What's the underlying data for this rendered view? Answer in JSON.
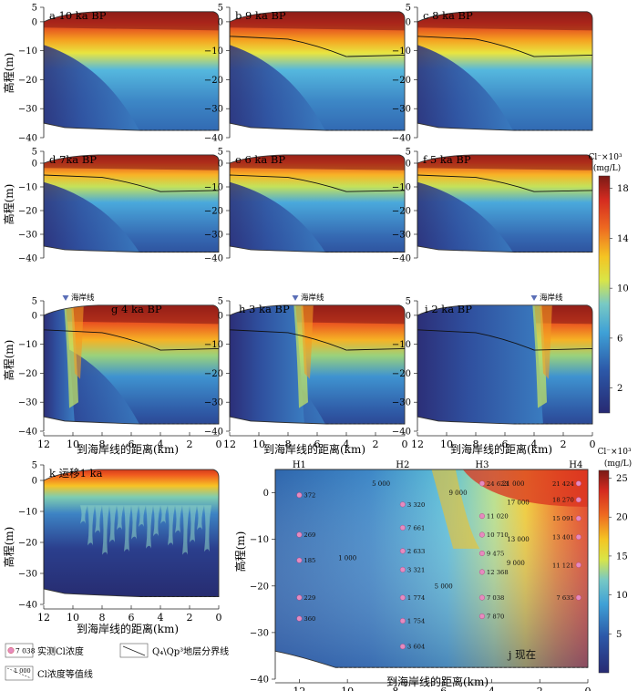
{
  "labels": {
    "ylabel": "高程(m)",
    "xlabel": "到海岸线的距离(km)",
    "coast": "海岸线",
    "colorbar_unit_top": "Cl⁻×10³",
    "colorbar_unit_bottom": "(mg/L)",
    "legend_measured": "实测Cl浓度",
    "legend_boundary": "Q₄\\Qp³地层分界线",
    "legend_contour": "Cl浓度等值线",
    "legend_sample_value": "7 038",
    "legend_contour_value": "1 000"
  },
  "chart_data": [
    {
      "type": "heatmap",
      "panel": "a",
      "title": "a  10 ka BP",
      "xlim": [
        12,
        0
      ],
      "ylim": [
        -40,
        5
      ],
      "xticks": [
        12,
        10,
        8,
        6,
        4,
        2,
        0
      ],
      "yticks": [
        5,
        0,
        -10,
        -20,
        -30,
        -40
      ]
    },
    {
      "type": "heatmap",
      "panel": "b",
      "title": "b  9 ka BP",
      "xlim": [
        12,
        0
      ],
      "ylim": [
        -40,
        5
      ]
    },
    {
      "type": "heatmap",
      "panel": "c",
      "title": "c  8 ka BP",
      "xlim": [
        12,
        0
      ],
      "ylim": [
        -40,
        5
      ]
    },
    {
      "type": "heatmap",
      "panel": "d",
      "title": "d  7ka BP",
      "xlim": [
        12,
        0
      ],
      "ylim": [
        -40,
        5
      ]
    },
    {
      "type": "heatmap",
      "panel": "e",
      "title": "e  6 ka BP",
      "xlim": [
        12,
        0
      ],
      "ylim": [
        -40,
        5
      ]
    },
    {
      "type": "heatmap",
      "panel": "f",
      "title": "f  5 ka BP",
      "xlim": [
        12,
        0
      ],
      "ylim": [
        -40,
        5
      ]
    },
    {
      "type": "heatmap",
      "panel": "g",
      "title": "g  4 ka BP",
      "xlim": [
        12,
        0
      ],
      "ylim": [
        -40,
        5
      ],
      "coastline_km": 10.5
    },
    {
      "type": "heatmap",
      "panel": "h",
      "title": "h  3 ka BP",
      "xlim": [
        12,
        0
      ],
      "ylim": [
        -40,
        5
      ],
      "coastline_km": 7.5
    },
    {
      "type": "heatmap",
      "panel": "i",
      "title": "i  2 ka BP",
      "xlim": [
        12,
        0
      ],
      "ylim": [
        -40,
        5
      ],
      "coastline_km": 4.0
    },
    {
      "type": "heatmap",
      "panel": "k",
      "title": "k  运移1 ka",
      "xlim": [
        12,
        0
      ],
      "ylim": [
        -40,
        5
      ]
    },
    {
      "type": "heatmap",
      "panel": "j",
      "title": "j  现在",
      "xlim": [
        13,
        0
      ],
      "ylim": [
        -40,
        5
      ],
      "xticks": [
        12,
        10,
        8,
        6,
        4,
        2,
        0
      ],
      "yticks": [
        0,
        -10,
        -20,
        -30,
        -40
      ],
      "boreholes": [
        {
          "name": "H1",
          "x_km": 12.0,
          "samples": [
            {
              "z": -0.5,
              "v": "372"
            },
            {
              "z": -9,
              "v": "269"
            },
            {
              "z": -14.5,
              "v": "185"
            },
            {
              "z": -22.5,
              "v": "229"
            },
            {
              "z": -27,
              "v": "360"
            }
          ]
        },
        {
          "name": "H2",
          "x_km": 7.7,
          "samples": [
            {
              "z": -2.5,
              "v": "3 320"
            },
            {
              "z": -7.5,
              "v": "7 661"
            },
            {
              "z": -12.5,
              "v": "2 633"
            },
            {
              "z": -16.5,
              "v": "3 321"
            },
            {
              "z": -22.5,
              "v": "1 774"
            },
            {
              "z": -27.5,
              "v": "1 754"
            },
            {
              "z": -33,
              "v": "3 604"
            }
          ]
        },
        {
          "name": "H3",
          "x_km": 4.4,
          "samples": [
            {
              "z": 2,
              "v": "24 623"
            },
            {
              "z": -5,
              "v": "11 020"
            },
            {
              "z": -9,
              "v": "10 710"
            },
            {
              "z": -13,
              "v": "9 475"
            },
            {
              "z": -17,
              "v": "12 368"
            },
            {
              "z": -22.5,
              "v": "7 038"
            },
            {
              "z": -26.5,
              "v": "7 870"
            }
          ]
        },
        {
          "name": "H4",
          "x_km": 0.5,
          "samples": [
            {
              "z": 2,
              "v": "21 424"
            },
            {
              "z": -1.5,
              "v": "18 270"
            },
            {
              "z": -5.5,
              "v": "15 091"
            },
            {
              "z": -9.5,
              "v": "13 401"
            },
            {
              "z": -15.5,
              "v": "11 121"
            },
            {
              "z": -22.5,
              "v": "7 635"
            }
          ]
        }
      ],
      "contours": [
        {
          "label": "21 000",
          "x_km": 3.1,
          "z": 1.5
        },
        {
          "label": "17 000",
          "x_km": 2.9,
          "z": -2.5
        },
        {
          "label": "13 000",
          "x_km": 2.9,
          "z": -10.5
        },
        {
          "label": "9 000",
          "x_km": 5.4,
          "z": -0.5
        },
        {
          "label": "9 000",
          "x_km": 3.0,
          "z": -15.5
        },
        {
          "label": "5 000",
          "x_km": 8.6,
          "z": 1.5
        },
        {
          "label": "5 000",
          "x_km": 6.0,
          "z": -20.5
        },
        {
          "label": "1 000",
          "x_km": 10.0,
          "z": -14.5
        }
      ]
    },
    {
      "type": "colorbar",
      "panel": "colorbar-top",
      "ticks": [
        18,
        14,
        10,
        6,
        2
      ],
      "range": [
        0,
        19
      ]
    },
    {
      "type": "colorbar",
      "panel": "colorbar-bottom",
      "ticks": [
        25,
        20,
        15,
        10,
        5
      ],
      "range": [
        0,
        26
      ]
    }
  ]
}
